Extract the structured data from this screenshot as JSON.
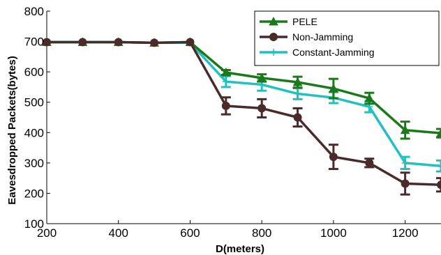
{
  "chart_data": {
    "type": "line",
    "title": "",
    "xlabel": "D(meters)",
    "ylabel": "Eavesdropped Packets(bytes)",
    "xlim": [
      200,
      1300
    ],
    "ylim": [
      100,
      800
    ],
    "xticks": [
      200,
      400,
      600,
      800,
      1000,
      1200
    ],
    "yticks": [
      100,
      200,
      300,
      400,
      500,
      600,
      700,
      800
    ],
    "grid": false,
    "legend_position": "top-right",
    "x": [
      200,
      300,
      400,
      500,
      600,
      700,
      800,
      900,
      1000,
      1100,
      1200,
      1300
    ],
    "series": [
      {
        "name": "PELE",
        "color": "#1a7a1a",
        "marker": "triangle",
        "values": [
          698,
          698,
          698,
          696,
          698,
          598,
          580,
          566,
          545,
          513,
          408,
          398
        ],
        "errors": [
          0,
          0,
          0,
          0,
          0,
          8,
          12,
          18,
          32,
          18,
          28,
          14
        ]
      },
      {
        "name": "Non-Jamming",
        "color": "#4a2a2a",
        "marker": "circle",
        "values": [
          698,
          698,
          698,
          696,
          698,
          488,
          480,
          450,
          320,
          300,
          232,
          228
        ],
        "errors": [
          0,
          0,
          0,
          0,
          0,
          28,
          30,
          30,
          40,
          14,
          36,
          22
        ]
      },
      {
        "name": "Constant-Jamming",
        "color": "#22c0c0",
        "marker": "plus",
        "values": [
          698,
          698,
          698,
          696,
          696,
          568,
          558,
          528,
          515,
          485,
          300,
          290
        ],
        "errors": [
          0,
          0,
          0,
          0,
          0,
          18,
          20,
          18,
          18,
          18,
          20,
          18
        ]
      }
    ]
  }
}
